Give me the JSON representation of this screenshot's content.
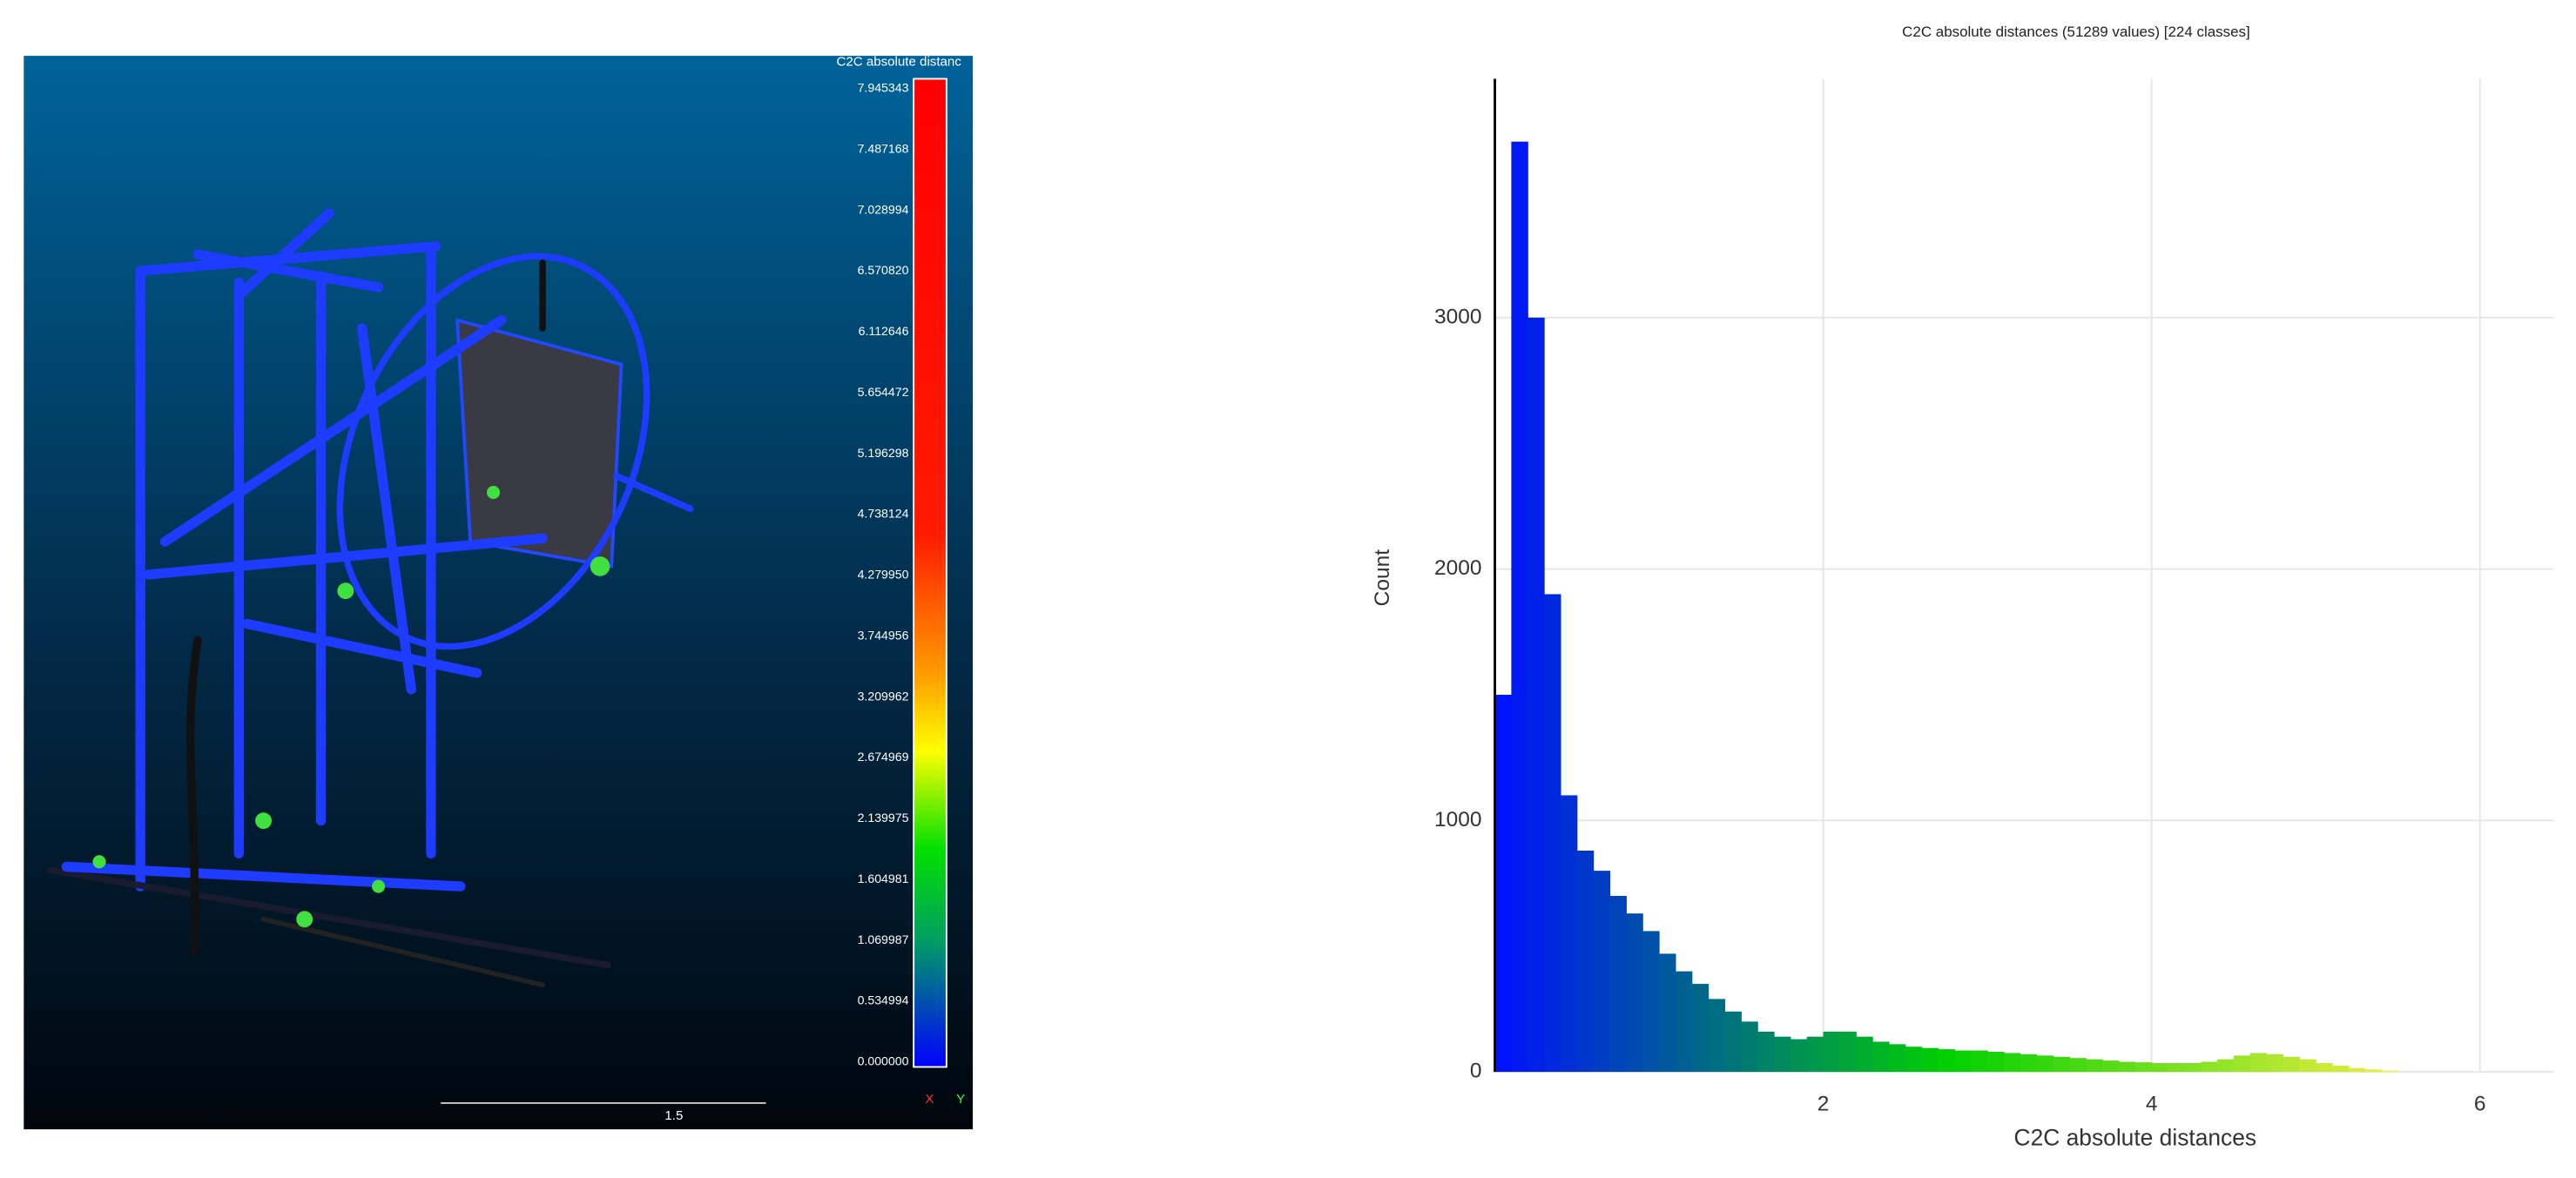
{
  "viewer": {
    "colorbar": {
      "title": "C2C absolute distanc",
      "labels": [
        "7.945343",
        "7.487168",
        "7.028994",
        "6.570820",
        "6.112646",
        "5.654472",
        "5.196298",
        "4.738124",
        "4.279950",
        "3.744956",
        "3.209962",
        "2.674969",
        "2.139975",
        "1.604981",
        "1.069987",
        "0.534994",
        "0.000000"
      ]
    },
    "scale_label": "1.5",
    "axes": [
      "X",
      "Y"
    ]
  },
  "chart_data": {
    "type": "histogram",
    "title": "C2C absolute distances (51289 values)  [224 classes]",
    "x_label": "C2C absolute distances",
    "y_label": "Count",
    "bins": [
      0,
      0.1,
      0.2,
      0.3,
      0.4,
      0.5,
      0.6,
      0.7,
      0.8,
      0.9,
      1.0,
      1.1,
      1.2,
      1.3,
      1.4,
      1.5,
      1.6,
      1.7,
      1.8,
      1.9,
      2.0,
      2.1,
      2.2,
      2.3,
      2.4,
      2.5,
      2.6,
      2.7,
      2.8,
      2.9,
      3.0,
      3.1,
      3.2,
      3.3,
      3.4,
      3.5,
      3.6,
      3.7,
      3.8,
      3.9,
      4.0,
      4.1,
      4.2,
      4.3,
      4.4,
      4.5,
      4.6,
      4.7,
      4.8,
      4.9,
      5.0,
      5.1,
      5.2,
      5.3,
      5.4,
      5.5
    ],
    "counts": [
      1500,
      3700,
      3000,
      1900,
      1100,
      880,
      800,
      700,
      630,
      560,
      470,
      400,
      350,
      290,
      240,
      200,
      160,
      140,
      130,
      140,
      160,
      160,
      140,
      120,
      110,
      100,
      95,
      90,
      85,
      85,
      80,
      75,
      70,
      65,
      60,
      55,
      50,
      45,
      40,
      38,
      35,
      35,
      35,
      40,
      50,
      65,
      75,
      70,
      60,
      50,
      35,
      25,
      15,
      10,
      5
    ],
    "colors": [
      "#0010ff",
      "#00d000",
      "#f0f040"
    ],
    "xlim": [
      0,
      6.45
    ],
    "ylim": [
      0,
      3950
    ],
    "xticks": [
      2,
      4,
      6
    ],
    "yticks": [
      0,
      1000,
      2000,
      3000
    ],
    "grid": true
  }
}
